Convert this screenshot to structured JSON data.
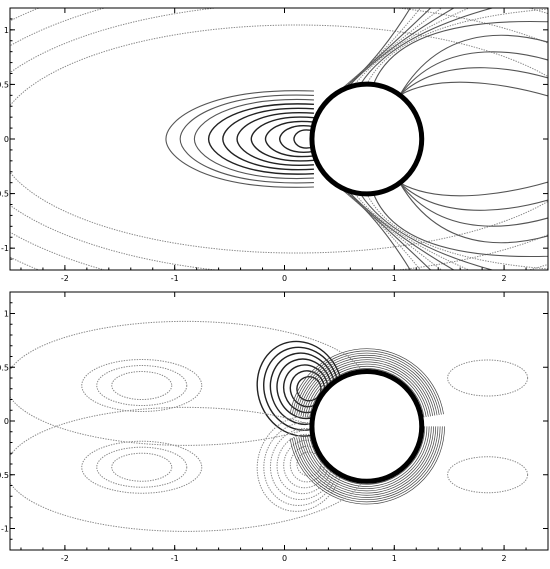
{
  "chart_data": [
    {
      "type": "contour",
      "title": "",
      "xlabel": "",
      "ylabel": "",
      "xlim": [
        -2.5,
        2.4
      ],
      "ylim": [
        -1.2,
        1.2
      ],
      "x_ticks": [
        -2,
        -1,
        0,
        1,
        2
      ],
      "y_ticks": [
        -1,
        -0.5,
        0,
        0.5,
        1
      ],
      "x_tick_labels": [
        "-2",
        "-1",
        "0",
        "1",
        "2"
      ],
      "y_tick_labels": [
        "-1",
        "-0.5",
        "0",
        "0.5",
        "1"
      ],
      "cylinder": {
        "center": [
          0.75,
          0.0
        ],
        "radius": 0.5
      },
      "grid": false,
      "contour_style": "symmetric pressure-like field with closed loops upstream of the cylinder"
    },
    {
      "type": "contour",
      "title": "",
      "xlabel": "",
      "ylabel": "",
      "xlim": [
        -2.5,
        2.4
      ],
      "ylim": [
        -1.2,
        1.2
      ],
      "x_ticks": [
        -2,
        -1,
        0,
        1,
        2
      ],
      "y_ticks": [
        -1,
        -0.5,
        0,
        0.5,
        1
      ],
      "x_tick_labels": [
        "-2",
        "-1",
        "0",
        "1",
        "2"
      ],
      "y_tick_labels": [
        "-1",
        "-0.5",
        "0",
        "0.5",
        "1"
      ],
      "cylinder": {
        "center": [
          0.75,
          -0.05
        ],
        "radius": 0.5
      },
      "grid": false,
      "contour_style": "antisymmetric vorticity-like field with paired loops above and below the centreline"
    }
  ]
}
